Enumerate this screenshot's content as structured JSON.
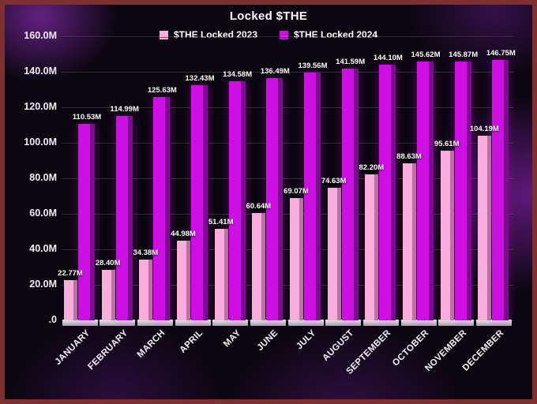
{
  "title": "Locked $THE",
  "colors": {
    "border": "#7e2f2f",
    "background": "#0b0610",
    "accent_2023": "#f8addc",
    "accent_2024": "#cd0fe4"
  },
  "chart_data": {
    "type": "bar",
    "title": "Locked $THE",
    "categories": [
      "JANUARY",
      "FEBRUARY",
      "MARCH",
      "APRIL",
      "MAY",
      "JUNE",
      "JULY",
      "AUGUST",
      "SEPTEMBER",
      "OCTOBER",
      "NOVEMBER",
      "DECEMBER"
    ],
    "series": [
      {
        "name": "$THE Locked 2023",
        "color": "#f8addc",
        "side_color": "#bd6fa6",
        "values": [
          22.77,
          28.4,
          34.38,
          44.98,
          51.41,
          60.64,
          69.07,
          74.63,
          82.2,
          88.63,
          95.61,
          104.19
        ],
        "labels": [
          "22.77M",
          "28.40M",
          "34.38M",
          "44.98M",
          "51.41M",
          "60.64M",
          "69.07M",
          "74.63M",
          "82.20M",
          "88.63M",
          "95.61M",
          "104.19M"
        ]
      },
      {
        "name": "$THE Locked 2024",
        "color": "#cd0fe4",
        "side_color": "#7c0b8f",
        "values": [
          110.53,
          114.99,
          125.63,
          132.43,
          134.58,
          136.49,
          139.56,
          141.59,
          144.1,
          145.62,
          145.87,
          146.75
        ],
        "labels": [
          "110.53M",
          "114.99M",
          "125.63M",
          "132.43M",
          "134.58M",
          "136.49M",
          "139.56M",
          "141.59M",
          "144.10M",
          "145.62M",
          "145.87M",
          "146.75M"
        ]
      }
    ],
    "yticks": [
      "160.0M",
      "140.0M",
      "120.0M",
      "100.0M",
      "80.0M",
      "60.0M",
      "40.0M",
      "20.0M",
      ".0"
    ],
    "ylim": [
      0,
      160
    ],
    "grid": true,
    "legend_position": "top"
  }
}
